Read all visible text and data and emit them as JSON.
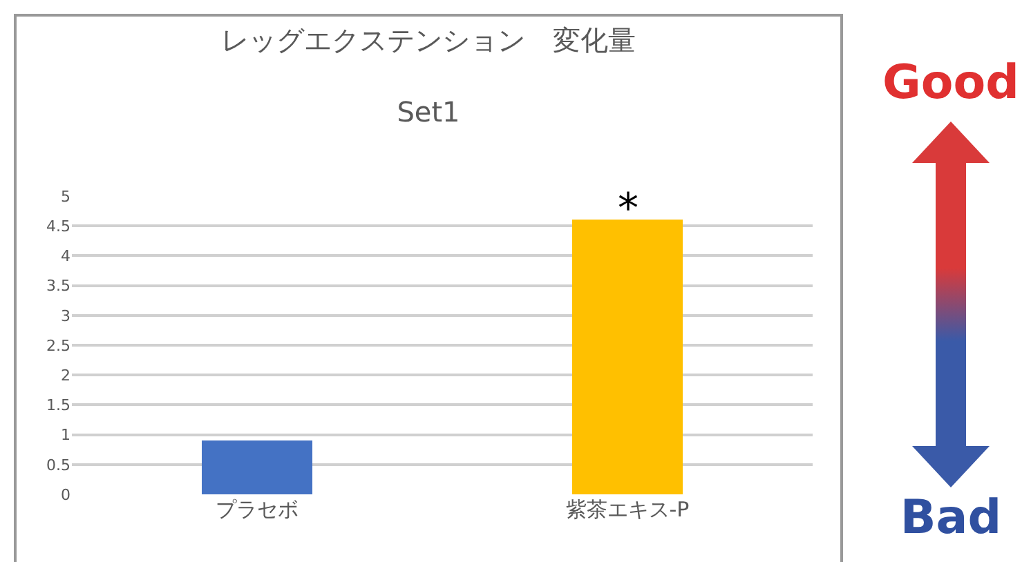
{
  "chart_data": {
    "type": "bar",
    "title": "レッグエクステンション　変化量",
    "subtitle": "Set1",
    "categories": [
      "プラセボ",
      "紫茶エキス-P"
    ],
    "values": [
      0.9,
      4.6
    ],
    "colors": [
      "#4472c4",
      "#ffc000"
    ],
    "ylim": [
      0,
      5
    ],
    "yticks": [
      0,
      0.5,
      1,
      1.5,
      2,
      2.5,
      3,
      3.5,
      4,
      4.5,
      5
    ],
    "grid": "y",
    "legend": false,
    "annotations": [
      {
        "text": "*",
        "x": "紫茶エキス-P",
        "y": 4.6
      },
      "Good",
      "Bad"
    ]
  }
}
